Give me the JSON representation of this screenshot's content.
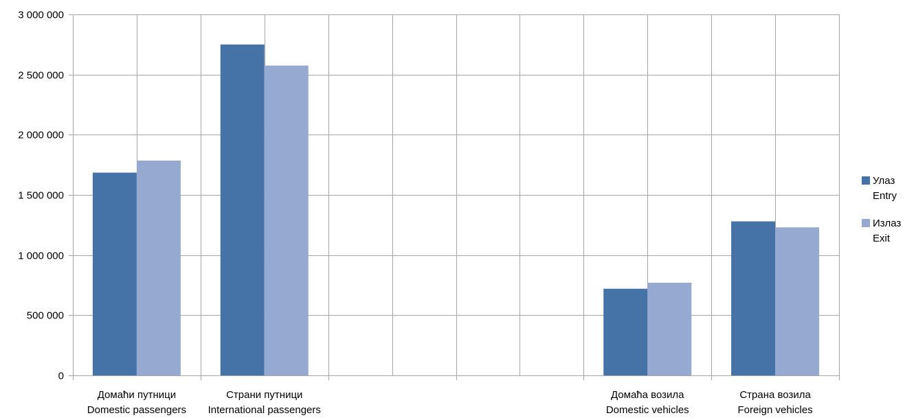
{
  "chart_data": {
    "type": "bar",
    "title": "",
    "xlabel": "",
    "ylabel": "",
    "ylim": [
      0,
      3000000
    ],
    "y_ticks": [
      {
        "value": 0,
        "label": "0"
      },
      {
        "value": 500000,
        "label": "500 000"
      },
      {
        "value": 1000000,
        "label": "1 000 000"
      },
      {
        "value": 1500000,
        "label": "1 500 000"
      },
      {
        "value": 2000000,
        "label": "2 000 000"
      },
      {
        "value": 2500000,
        "label": "2 500 000"
      },
      {
        "value": 3000000,
        "label": "3 000 000"
      }
    ],
    "categories": [
      {
        "line1": "Домаћи путници",
        "line2": "Domestic passengers"
      },
      {
        "line1": "Страни путници",
        "line2": "International passengers"
      },
      {
        "line1": "",
        "line2": ""
      },
      {
        "line1": "",
        "line2": ""
      },
      {
        "line1": "Домаћа возила",
        "line2": "Domestic vehicles"
      },
      {
        "line1": "Страна возила",
        "line2": "Foreign vehicles"
      }
    ],
    "series": [
      {
        "name": "Улаз",
        "name_en": "Entry",
        "color": "#4572a7",
        "values": [
          1685000,
          2750000,
          null,
          null,
          720000,
          1280000
        ]
      },
      {
        "name": "Излаз",
        "name_en": "Exit",
        "color": "#95a9d1",
        "values": [
          1785000,
          2575000,
          null,
          null,
          770000,
          1230000
        ]
      }
    ],
    "grid": true,
    "legend_position": "right",
    "gridline_color": "#a6a6a6"
  }
}
